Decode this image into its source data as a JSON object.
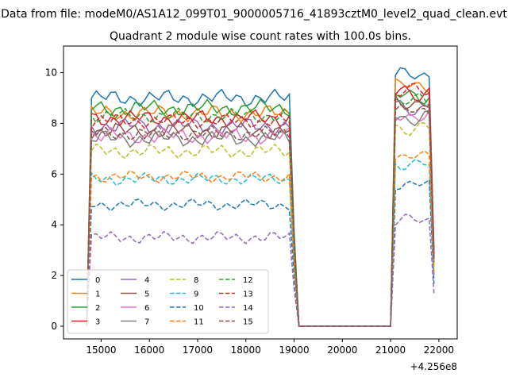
{
  "figure": {
    "suptitle": "Data from file: modeM0/AS1A12_099T01_9000005716_41893cztM0_level2_quad_clean.evt",
    "title": "Quadrant 2 module wise count rates with 100.0s bins.",
    "offset_label": "+4.256e8"
  },
  "chart_data": {
    "type": "line",
    "title": "Quadrant 2 module wise count rates with 100.0s bins.",
    "x_offset": "+4.256e8",
    "xlim": [
      14220,
      22380
    ],
    "ylim": [
      -0.5,
      11.05
    ],
    "xticks": [
      15000,
      16000,
      17000,
      18000,
      19000,
      20000,
      21000,
      22000
    ],
    "xtick_labels": [
      "15000",
      "16000",
      "17000",
      "18000",
      "19000",
      "20000",
      "21000",
      "22000"
    ],
    "yticks": [
      0,
      2,
      4,
      6,
      8,
      10
    ],
    "ytick_labels": [
      "0",
      "2",
      "4",
      "6",
      "8",
      "10"
    ],
    "grid": false,
    "legend_location": "lower-left",
    "legend_columns": 4,
    "segments": [
      {
        "x_start": 14800,
        "x_end": 18900,
        "step": 100
      },
      {
        "x_start": 21100,
        "x_end": 21800,
        "step": 100
      }
    ],
    "gap_x": [
      19100,
      21000
    ],
    "ramp": {
      "first_segment_start": {
        "x": 14700,
        "value": 0
      },
      "first_segment_end": {
        "x": 19000,
        "value_fraction": 0.42
      },
      "second_segment_end": {
        "x": 21900,
        "value_fraction": 0.3
      }
    },
    "series": [
      {
        "name": "0",
        "color": "#1f77b4",
        "dash": "solid",
        "level1": 9.0,
        "level2": 9.9,
        "variation": 0.35
      },
      {
        "name": "1",
        "color": "#ff7f0e",
        "dash": "solid",
        "level1": 8.4,
        "level2": 9.5,
        "variation": 0.35
      },
      {
        "name": "2",
        "color": "#2ca02c",
        "dash": "solid",
        "level1": 8.6,
        "level2": 9.1,
        "variation": 0.35
      },
      {
        "name": "3",
        "color": "#d62728",
        "dash": "solid",
        "level1": 8.2,
        "level2": 9.2,
        "variation": 0.35
      },
      {
        "name": "4",
        "color": "#9467bd",
        "dash": "solid",
        "level1": 7.9,
        "level2": 8.6,
        "variation": 0.35
      },
      {
        "name": "5",
        "color": "#8c564b",
        "dash": "solid",
        "level1": 7.7,
        "level2": 8.8,
        "variation": 0.35
      },
      {
        "name": "6",
        "color": "#e377c2",
        "dash": "solid",
        "level1": 7.5,
        "level2": 8.3,
        "variation": 0.35
      },
      {
        "name": "7",
        "color": "#7f7f7f",
        "dash": "solid",
        "level1": 7.4,
        "level2": 8.2,
        "variation": 0.35
      },
      {
        "name": "8",
        "color": "#bcbd22",
        "dash": "dashed",
        "level1": 6.9,
        "level2": 7.8,
        "variation": 0.3
      },
      {
        "name": "9",
        "color": "#17becf",
        "dash": "dashed",
        "level1": 5.8,
        "level2": 6.4,
        "variation": 0.25
      },
      {
        "name": "10",
        "color": "#1f77b4",
        "dash": "dashed",
        "level1": 4.8,
        "level2": 5.6,
        "variation": 0.25
      },
      {
        "name": "11",
        "color": "#ff7f0e",
        "dash": "dashed",
        "level1": 5.9,
        "level2": 6.7,
        "variation": 0.25
      },
      {
        "name": "12",
        "color": "#2ca02c",
        "dash": "dashed",
        "level1": 8.3,
        "level2": 8.9,
        "variation": 0.3
      },
      {
        "name": "13",
        "color": "#d62728",
        "dash": "dashed",
        "level1": 8.1,
        "level2": 9.3,
        "variation": 0.3
      },
      {
        "name": "14",
        "color": "#9467bd",
        "dash": "dashed",
        "level1": 3.5,
        "level2": 4.2,
        "variation": 0.25
      },
      {
        "name": "15",
        "color": "#8c564b",
        "dash": "dashed",
        "level1": 7.6,
        "level2": 8.5,
        "variation": 0.3
      }
    ]
  }
}
